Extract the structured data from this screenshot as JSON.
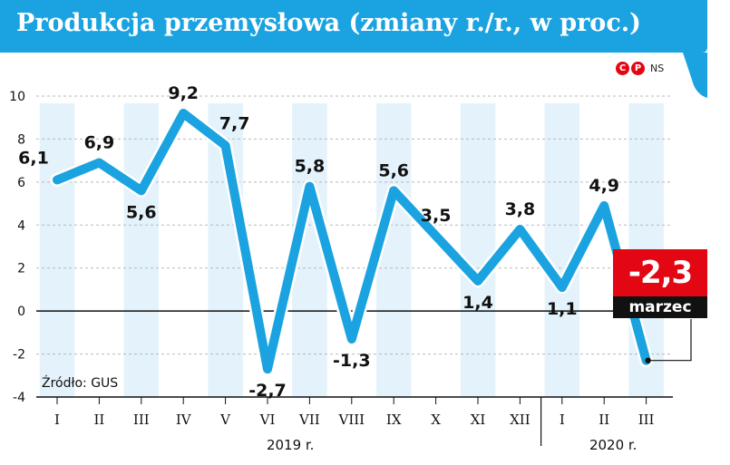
{
  "header": {
    "title": "Produkcja przemysłowa (zmiany r./r., w proc.)",
    "copyright_mark": "CP",
    "copyright_text": "NS",
    "brand_color": "#1aa3e0"
  },
  "source_note": "Źródło: GUS",
  "callout": {
    "value": "-2,3",
    "label": "marzec",
    "value_color": "#e30613",
    "label_color": "#111111"
  },
  "chart_data": {
    "type": "line",
    "title": "Produkcja przemysłowa (zmiany r./r., w proc.)",
    "xlabel": "",
    "ylabel": "",
    "ylim": [
      -4,
      10
    ],
    "yticks": [
      -4,
      -2,
      0,
      2,
      4,
      6,
      8,
      10
    ],
    "categories": [
      "I",
      "II",
      "III",
      "IV",
      "V",
      "VI",
      "VII",
      "VIII",
      "IX",
      "X",
      "XI",
      "XII",
      "I",
      "II",
      "III"
    ],
    "year_groups": [
      {
        "label": "2019 r.",
        "start": 0,
        "end": 11
      },
      {
        "label": "2020 r.",
        "start": 12,
        "end": 14
      }
    ],
    "series": [
      {
        "name": "Produkcja przemysłowa r./r.",
        "color": "#1aa3e0",
        "values": [
          6.1,
          6.9,
          5.6,
          9.2,
          7.7,
          -2.7,
          5.8,
          -1.3,
          5.6,
          3.5,
          1.4,
          3.8,
          1.1,
          4.9,
          -2.3
        ]
      }
    ],
    "data_labels": [
      "6,1",
      "6,9",
      "5,6",
      "9,2",
      "7,7",
      "-2,7",
      "5,8",
      "-1,3",
      "5,6",
      "3,5",
      "1,4",
      "3,8",
      "1,1",
      "4,9",
      ""
    ],
    "grid": true,
    "legend": "none"
  }
}
